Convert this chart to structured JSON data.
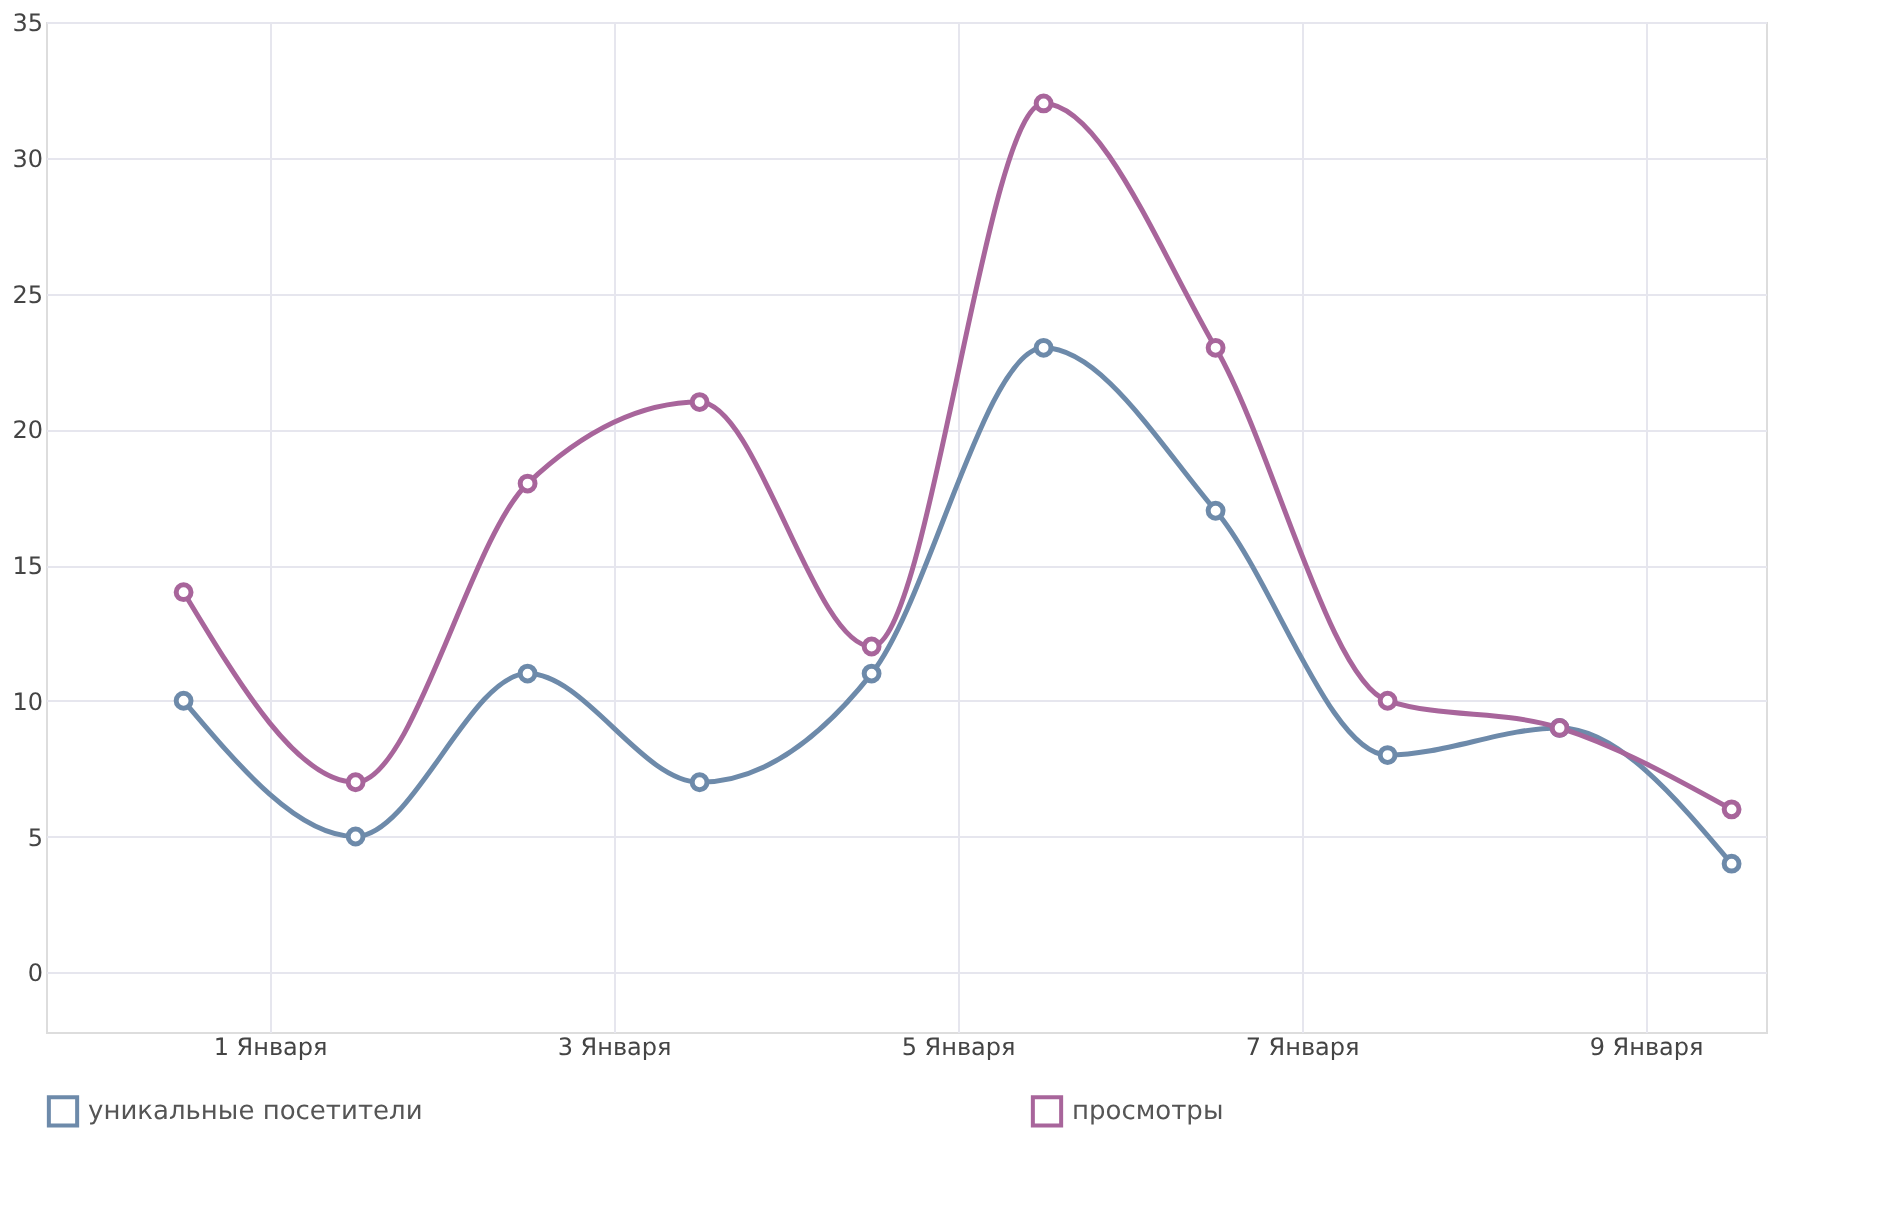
{
  "chart_data": {
    "type": "line",
    "x": [
      0.5,
      1.5,
      2.5,
      3.5,
      4.5,
      5.5,
      6.5,
      7.5,
      8.5,
      9.5
    ],
    "series": [
      {
        "name": "уникальные посетители",
        "color": "#6d8aaa",
        "values": [
          10,
          5,
          11,
          7,
          11,
          23,
          17,
          8,
          9,
          4
        ]
      },
      {
        "name": "просмотры",
        "color": "#a8659b",
        "values": [
          14,
          7,
          18,
          21,
          12,
          32,
          23,
          10,
          9,
          6
        ]
      }
    ],
    "xlim": [
      -0.3,
      9.7
    ],
    "xticks": [
      {
        "value": 1,
        "label": "1 Января"
      },
      {
        "value": 3,
        "label": "3 Января"
      },
      {
        "value": 5,
        "label": "5 Января"
      },
      {
        "value": 7,
        "label": "7 Января"
      },
      {
        "value": 9,
        "label": "9 Января"
      }
    ],
    "ylim": [
      -2.2,
      35
    ],
    "yticks": [
      0,
      5,
      10,
      15,
      20,
      25,
      30,
      35
    ],
    "grid": true,
    "legend": "bottom",
    "marker": "circle",
    "line_style": "solid"
  }
}
